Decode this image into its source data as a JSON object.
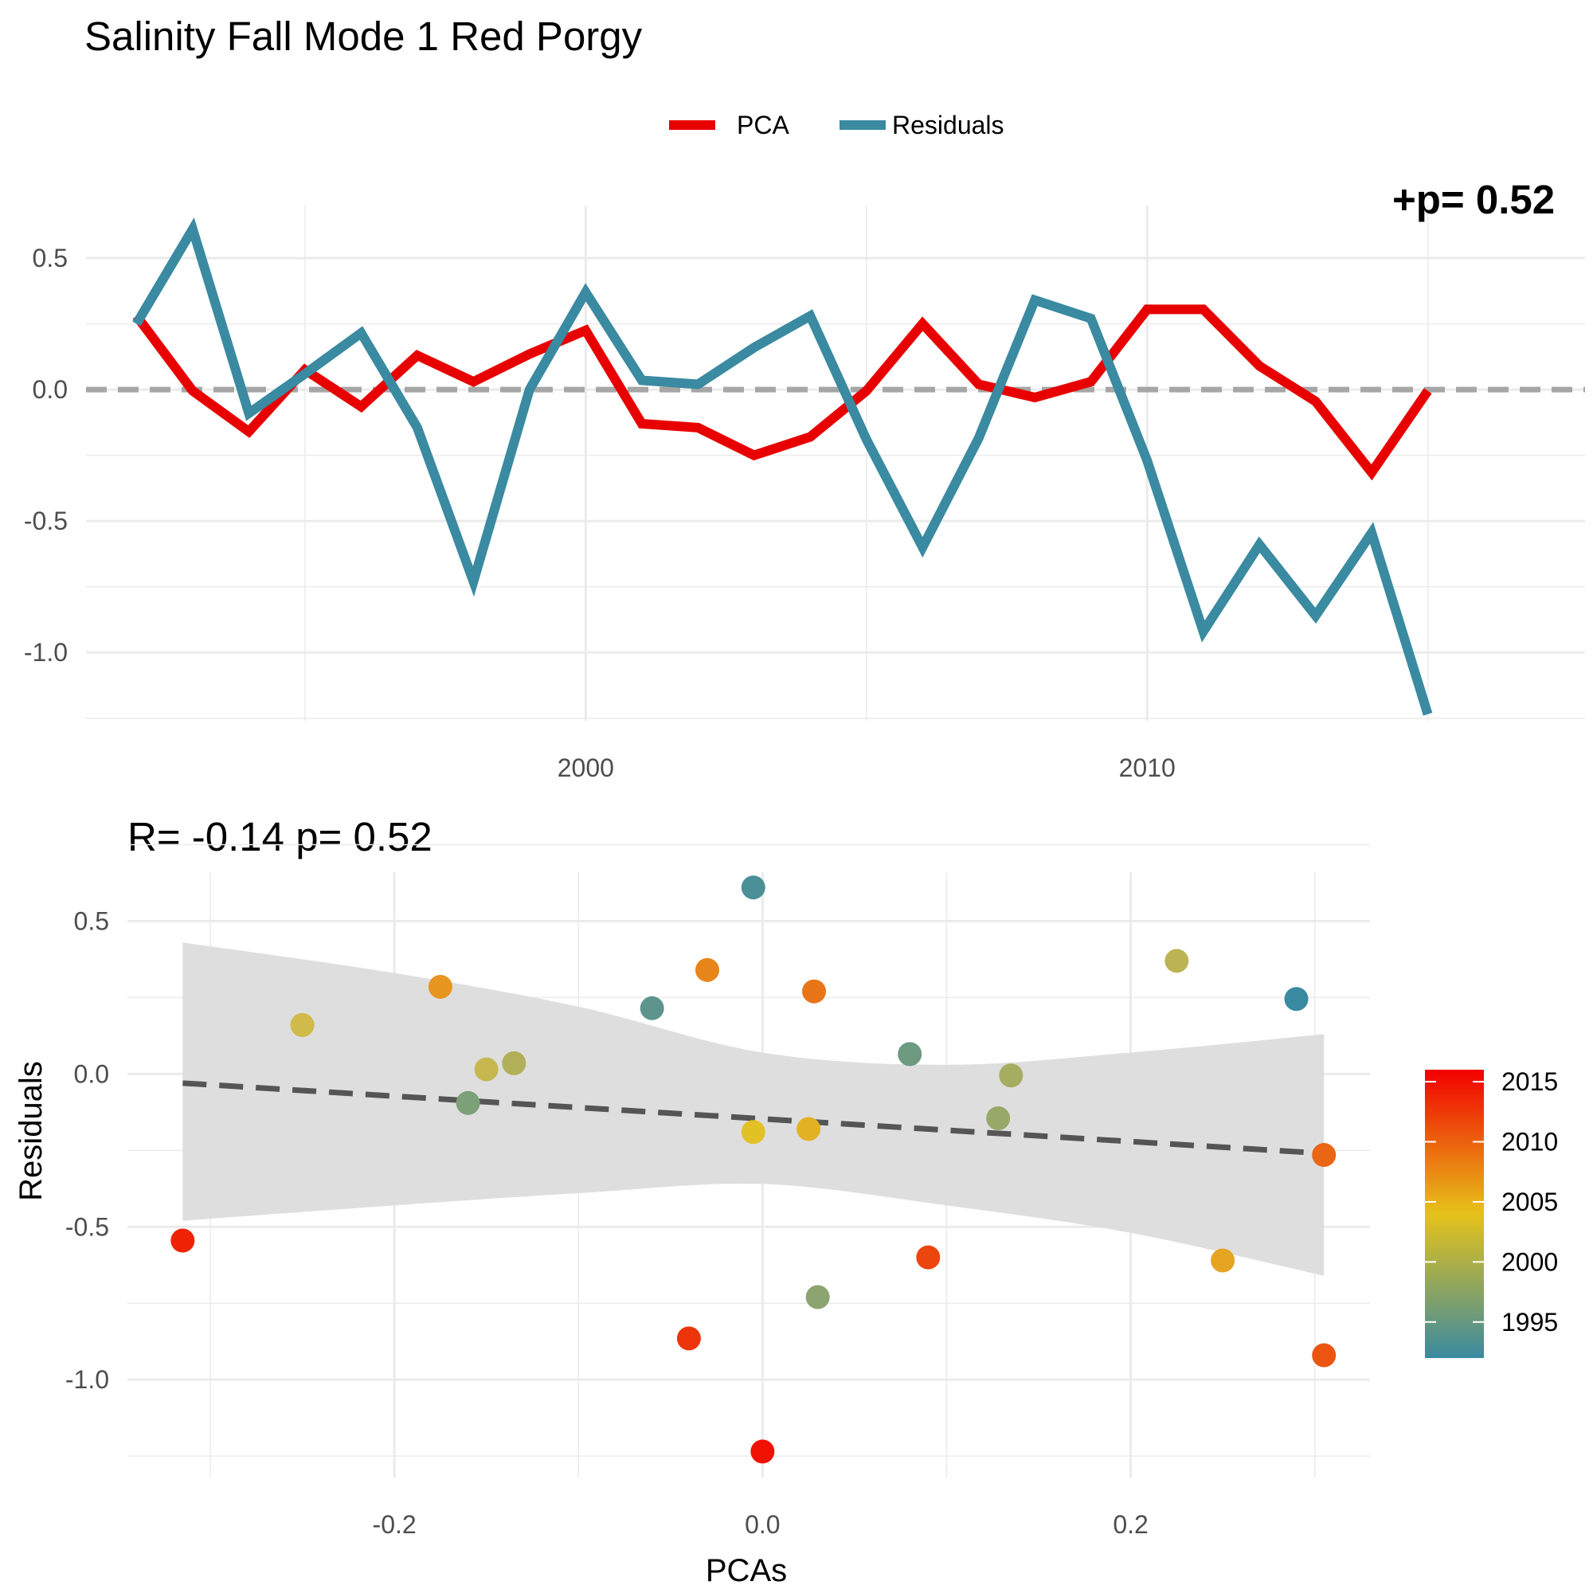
{
  "title": "Salinity Fall Mode 1  Red Porgy",
  "colors": {
    "pca": "#e80000",
    "residuals": "#3a8aa1",
    "zero_line": "#a6a6a6",
    "ribbon": "#dcdcdc",
    "trend": "#555555",
    "colorbar_low": "#3a8aa1",
    "colorbar_mid": "#e6c21a",
    "colorbar_high": "#f20000"
  },
  "chart_data": [
    {
      "type": "line",
      "title": "",
      "overflow_annotation": "+p= 0.52",
      "xlabel": "",
      "ylabel": "",
      "xlim": [
        1991.1,
        2017.8
      ],
      "ylim": [
        -1.26,
        0.7
      ],
      "x_ticks": [
        2000,
        2010
      ],
      "y_ticks": [
        0.5,
        0.0,
        -0.5,
        -1.0
      ],
      "y_tick_labels": [
        "0.5",
        "0.0",
        "-0.5",
        "-1.0"
      ],
      "legend_position": "top",
      "zero_line": true,
      "grid": true,
      "x": [
        1992,
        1993,
        1994,
        1995,
        1996,
        1997,
        1998,
        1999,
        2000,
        2001,
        2002,
        2003,
        2004,
        2005,
        2006,
        2007,
        2008,
        2009,
        2010,
        2011,
        2012,
        2013,
        2014,
        2015,
        2016
      ],
      "series": [
        {
          "name": "PCA",
          "values": [
            0.28,
            -0.005,
            -0.16,
            0.075,
            -0.065,
            0.13,
            0.03,
            0.135,
            0.225,
            -0.13,
            -0.145,
            -0.25,
            -0.18,
            -0.005,
            0.25,
            0.02,
            -0.03,
            0.03,
            0.305,
            0.305,
            0.09,
            -0.045,
            -0.315,
            -0.005,
            null
          ]
        },
        {
          "name": "Residuals",
          "values": [
            0.25,
            0.61,
            -0.09,
            0.06,
            0.215,
            -0.145,
            -0.73,
            0.0,
            0.37,
            0.035,
            0.02,
            0.16,
            0.28,
            -0.19,
            -0.6,
            -0.185,
            0.34,
            0.27,
            -0.27,
            -0.92,
            -0.59,
            -0.86,
            -0.545,
            -1.235,
            null
          ]
        }
      ]
    },
    {
      "type": "scatter",
      "title": "R= -0.14  p= 0.52",
      "xlabel": "PCAs",
      "ylabel": "Residuals",
      "xlim": [
        -0.345,
        0.33
      ],
      "ylim": [
        -1.32,
        0.66
      ],
      "x_ticks": [
        -0.2,
        0.0,
        0.2
      ],
      "x_tick_labels": [
        "-0.2",
        "0.0",
        "0.2"
      ],
      "y_ticks": [
        0.5,
        0.0,
        -0.5,
        -1.0
      ],
      "y_tick_labels": [
        "0.5",
        "0.0",
        "-0.5",
        "-1.0"
      ],
      "grid": true,
      "trend": {
        "x": [
          -0.315,
          0.305
        ],
        "y": [
          -0.03,
          -0.26
        ]
      },
      "ribbon": {
        "x": [
          -0.315,
          -0.2,
          -0.1,
          0.0,
          0.1,
          0.2,
          0.305
        ],
        "upper": [
          0.43,
          0.33,
          0.22,
          0.07,
          0.03,
          0.07,
          0.13
        ],
        "lower": [
          -0.48,
          -0.43,
          -0.39,
          -0.36,
          -0.43,
          -0.52,
          -0.66
        ]
      },
      "colorbar": {
        "min": 1992,
        "max": 2016,
        "ticks": [
          2015,
          2010,
          2005,
          2000,
          1995
        ],
        "tick_labels": [
          "2015",
          "2010",
          "2005",
          "2000",
          "1995"
        ]
      },
      "points": [
        {
          "year": 1992,
          "x": 0.29,
          "y": 0.245
        },
        {
          "year": 1993,
          "x": -0.005,
          "y": 0.61
        },
        {
          "year": 1994,
          "x": -0.06,
          "y": 0.215
        },
        {
          "year": 1995,
          "x": 0.08,
          "y": 0.065
        },
        {
          "year": 1996,
          "x": -0.16,
          "y": -0.095
        },
        {
          "year": 1997,
          "x": 0.03,
          "y": -0.73
        },
        {
          "year": 1998,
          "x": 0.128,
          "y": -0.145
        },
        {
          "year": 1999,
          "x": 0.135,
          "y": -0.005
        },
        {
          "year": 2000,
          "x": -0.135,
          "y": 0.035
        },
        {
          "year": 2001,
          "x": 0.225,
          "y": 0.37
        },
        {
          "year": 2002,
          "x": -0.15,
          "y": 0.015
        },
        {
          "year": 2003,
          "x": -0.25,
          "y": 0.16
        },
        {
          "year": 2004,
          "x": -0.005,
          "y": -0.19
        },
        {
          "year": 2005,
          "x": 0.025,
          "y": -0.18
        },
        {
          "year": 2006,
          "x": 0.25,
          "y": -0.61
        },
        {
          "year": 2007,
          "x": -0.175,
          "y": 0.285
        },
        {
          "year": 2008,
          "x": -0.03,
          "y": 0.34
        },
        {
          "year": 2009,
          "x": 0.028,
          "y": 0.27
        },
        {
          "year": 2010,
          "x": 0.305,
          "y": -0.265
        },
        {
          "year": 2011,
          "x": 0.305,
          "y": -0.92
        },
        {
          "year": 2012,
          "x": 0.09,
          "y": -0.6
        },
        {
          "year": 2013,
          "x": -0.04,
          "y": -0.865
        },
        {
          "year": 2014,
          "x": -0.315,
          "y": -0.545
        },
        {
          "year": 2015,
          "x": 0.0,
          "y": -1.235
        }
      ]
    }
  ]
}
